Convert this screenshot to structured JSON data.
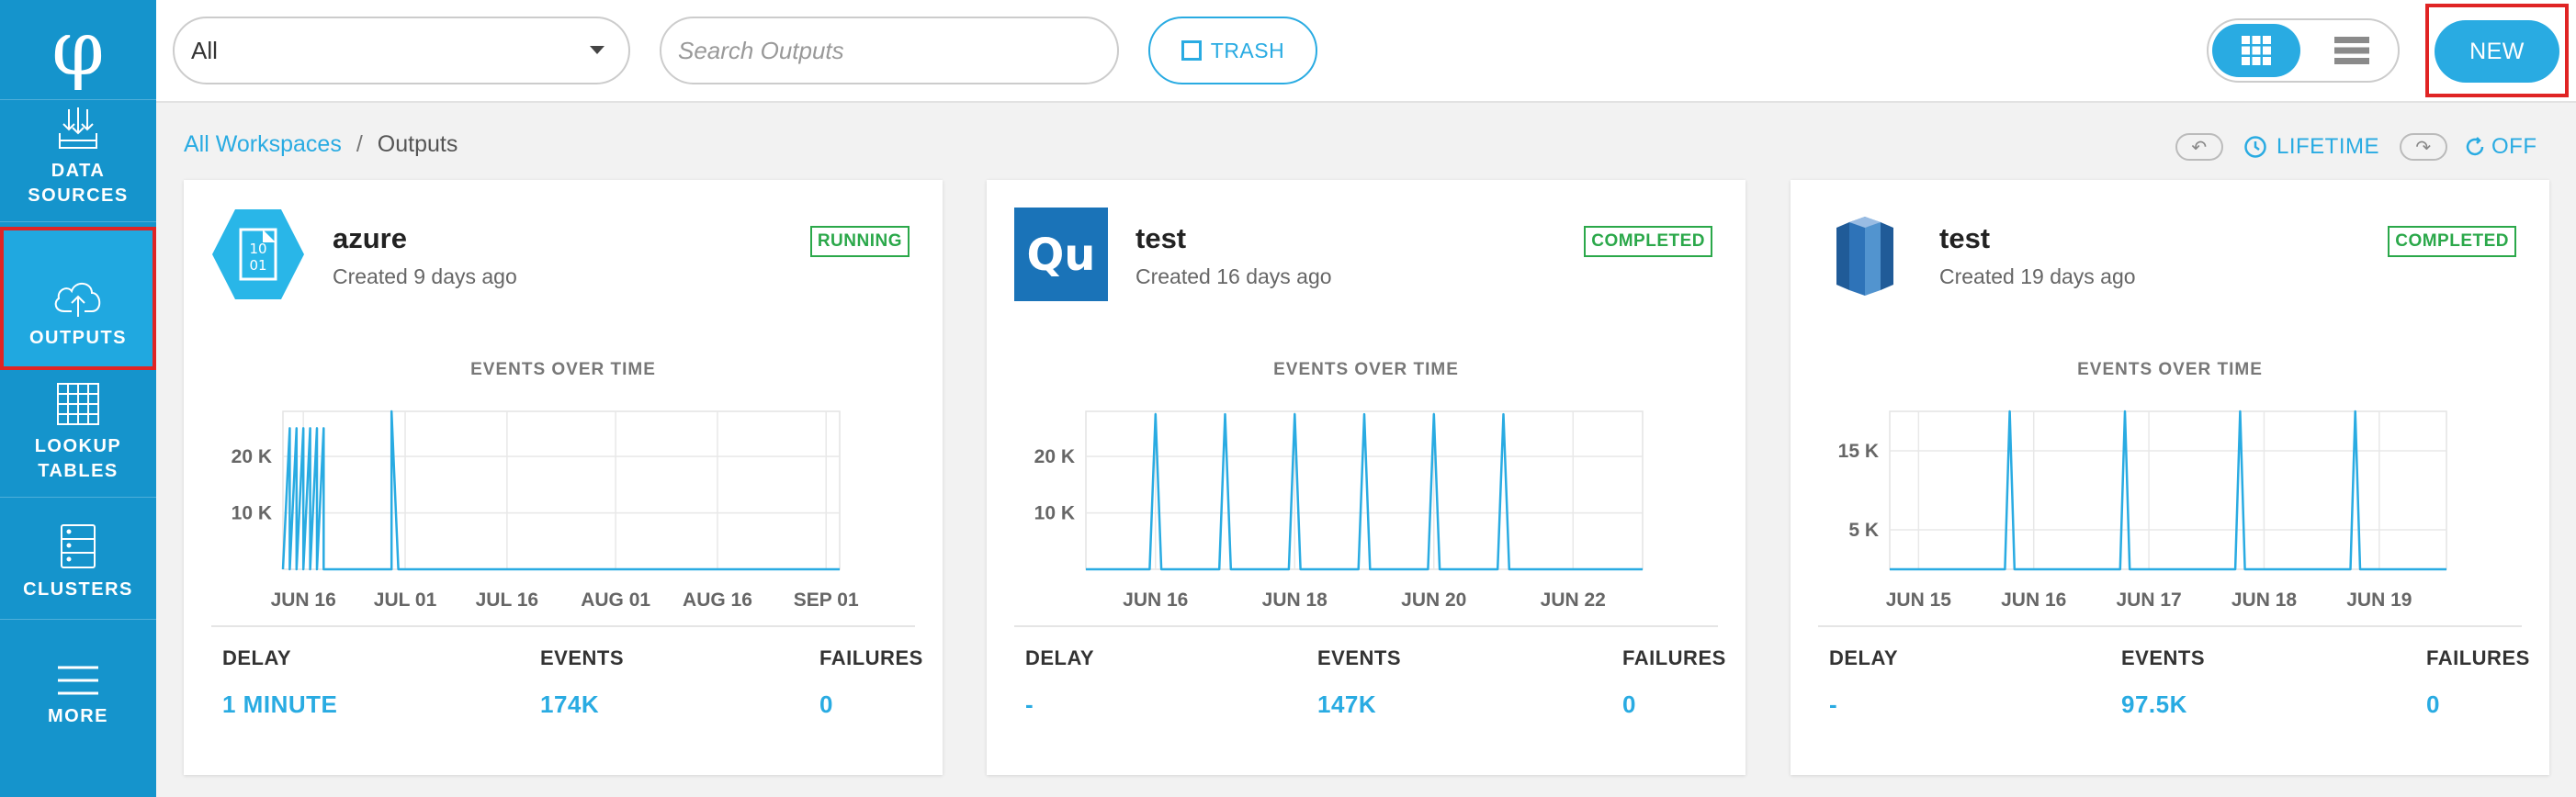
{
  "app": {
    "logo_glyph": "φ",
    "accent": "#29abe2",
    "sidebar_color": "#1594cc",
    "highlight": "#e02424"
  },
  "sidebar": {
    "items": [
      {
        "label": "DATA\nSOURCES",
        "icon": "data-sources-icon"
      },
      {
        "label": "OUTPUTS",
        "icon": "cloud-upload-icon",
        "active": true
      },
      {
        "label": "LOOKUP\nTABLES",
        "icon": "table-grid-icon"
      },
      {
        "label": "CLUSTERS",
        "icon": "server-rack-icon"
      },
      {
        "label": "MORE",
        "icon": "hamburger-icon"
      }
    ]
  },
  "toolbar": {
    "filter_value": "All",
    "search_placeholder": "Search Outputs",
    "trash_label": "TRASH",
    "view_mode": "grid",
    "new_label": "NEW"
  },
  "breadcrumb": {
    "root": "All Workspaces",
    "separator": "/",
    "current": "Outputs"
  },
  "controls": {
    "range_label": "LIFETIME",
    "refresh_label": "OFF"
  },
  "cards": [
    {
      "name": "azure",
      "created": "Created 9 days ago",
      "status": "RUNNING",
      "icon": "azure-blob-icon",
      "chart_title": "EVENTS OVER TIME",
      "stats": {
        "delay_label": "DELAY",
        "delay": "1 MINUTE",
        "events_label": "EVENTS",
        "events": "174K",
        "failures_label": "FAILURES",
        "failures": "0"
      }
    },
    {
      "name": "test",
      "created": "Created 16 days ago",
      "status": "COMPLETED",
      "icon": "qubole-icon",
      "icon_text": "Qu",
      "chart_title": "EVENTS OVER TIME",
      "stats": {
        "delay_label": "DELAY",
        "delay": "-",
        "events_label": "EVENTS",
        "events": "147K",
        "failures_label": "FAILURES",
        "failures": "0"
      }
    },
    {
      "name": "test",
      "created": "Created 19 days ago",
      "status": "COMPLETED",
      "icon": "redshift-icon",
      "chart_title": "EVENTS OVER TIME",
      "stats": {
        "delay_label": "DELAY",
        "delay": "-",
        "events_label": "EVENTS",
        "events": "97.5K",
        "failures_label": "FAILURES",
        "failures": "0"
      }
    }
  ],
  "chart_data": [
    {
      "type": "line",
      "title": "EVENTS OVER TIME",
      "x_ticks": [
        "JUN 16",
        "JUL 01",
        "JUL 16",
        "AUG 01",
        "AUG 16",
        "SEP 01"
      ],
      "y_ticks": [
        "10 K",
        "20 K"
      ],
      "y_tick_values": [
        10000,
        20000
      ],
      "ylim": [
        0,
        28000
      ],
      "x_domain": [
        "Jun 13",
        "Sep 03"
      ],
      "series": [
        {
          "x": [
            "Jun 13",
            "Jun 14",
            "Jun 14",
            "Jun 15",
            "Jun 15",
            "Jun 16",
            "Jun 16",
            "Jun 17",
            "Jun 17",
            "Jun 18",
            "Jun 18",
            "Jun 19",
            "Jun 19",
            "Jun 29",
            "Jun 29",
            "Jun 30",
            "Sep 03"
          ],
          "y": [
            0,
            25000,
            0,
            25000,
            0,
            25000,
            0,
            25000,
            0,
            25000,
            0,
            25000,
            0,
            0,
            28000,
            0,
            0
          ]
        }
      ],
      "grid": true
    },
    {
      "type": "line",
      "title": "EVENTS OVER TIME",
      "x_ticks": [
        "JUN 16",
        "JUN 18",
        "JUN 20",
        "JUN 22"
      ],
      "y_ticks": [
        "10 K",
        "20 K"
      ],
      "y_tick_values": [
        10000,
        20000
      ],
      "ylim": [
        0,
        28000
      ],
      "x_domain": [
        "Jun 15 00:00",
        "Jun 23 00:00"
      ],
      "series": [
        {
          "x": [
            "Jun 15 00:00",
            "Jun 15 22:00",
            "Jun 16 00:00",
            "Jun 16 02:00",
            "Jun 16 22:00",
            "Jun 17 00:00",
            "Jun 17 02:00",
            "Jun 17 22:00",
            "Jun 18 00:00",
            "Jun 18 02:00",
            "Jun 18 22:00",
            "Jun 19 00:00",
            "Jun 19 02:00",
            "Jun 19 22:00",
            "Jun 20 00:00",
            "Jun 20 02:00",
            "Jun 20 22:00",
            "Jun 21 00:00",
            "Jun 21 02:00",
            "Jun 23 00:00"
          ],
          "y": [
            0,
            0,
            27500,
            0,
            0,
            27500,
            0,
            0,
            27500,
            0,
            0,
            27500,
            0,
            0,
            27500,
            0,
            0,
            27500,
            0,
            0
          ]
        }
      ],
      "grid": true
    },
    {
      "type": "line",
      "title": "EVENTS OVER TIME",
      "x_ticks": [
        "JUN 15",
        "JUN 16",
        "JUN 17",
        "JUN 18",
        "JUN 19"
      ],
      "y_ticks": [
        "5 K",
        "15 K"
      ],
      "y_tick_values": [
        5000,
        15000
      ],
      "ylim": [
        0,
        20000
      ],
      "x_domain": [
        "Jun 14 18:00",
        "Jun 19 14:00"
      ],
      "series": [
        {
          "x": [
            "Jun 14 18:00",
            "Jun 15 18:00",
            "Jun 15 19:00",
            "Jun 15 20:00",
            "Jun 16 18:00",
            "Jun 16 19:00",
            "Jun 16 20:00",
            "Jun 17 18:00",
            "Jun 17 19:00",
            "Jun 17 20:00",
            "Jun 18 18:00",
            "Jun 18 19:00",
            "Jun 18 20:00",
            "Jun 19 14:00"
          ],
          "y": [
            0,
            0,
            20000,
            0,
            0,
            20000,
            0,
            0,
            20000,
            0,
            0,
            20000,
            0,
            0
          ]
        }
      ],
      "grid": true
    }
  ]
}
